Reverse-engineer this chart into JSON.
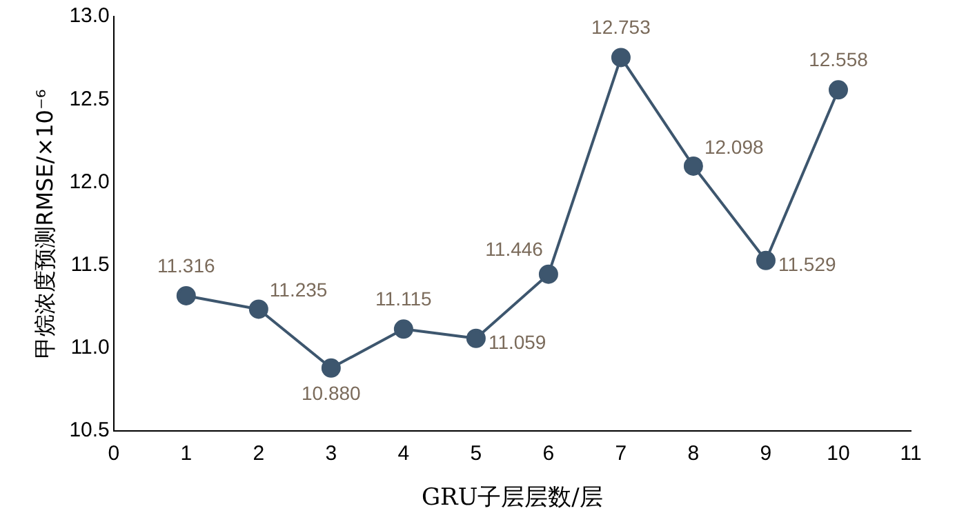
{
  "chart_data": {
    "type": "line",
    "xlabel": "GRU子层层数/层",
    "ylabel": "甲烷浓度预测RMSE/×10⁻⁶",
    "x": [
      1,
      2,
      3,
      4,
      5,
      6,
      7,
      8,
      9,
      10
    ],
    "series": [
      {
        "color": "#3d566e",
        "values": [
          11.316,
          11.235,
          10.88,
          11.115,
          11.059,
          11.446,
          12.753,
          12.098,
          11.529,
          12.558
        ],
        "value_labels": [
          "11.316",
          "11.235",
          "10.880",
          "11.115",
          "11.059",
          "11.446",
          "12.753",
          "12.098",
          "11.529",
          "12.558"
        ]
      }
    ],
    "xlim": [
      0,
      11
    ],
    "xticks": [
      0,
      1,
      2,
      3,
      4,
      5,
      6,
      7,
      8,
      9,
      10,
      11
    ],
    "ylim": [
      10.5,
      13
    ],
    "yticks": [
      {
        "value": 10.5,
        "label": "10.5"
      },
      {
        "value": 11,
        "label": "11.0"
      },
      {
        "value": 11.5,
        "label": "11.5"
      },
      {
        "value": 12,
        "label": "12.0"
      },
      {
        "value": 12.5,
        "label": "12.5"
      },
      {
        "value": 13,
        "label": "13.0"
      }
    ],
    "grid": false,
    "legend": false,
    "marker": "circle",
    "line_style": "solid"
  }
}
